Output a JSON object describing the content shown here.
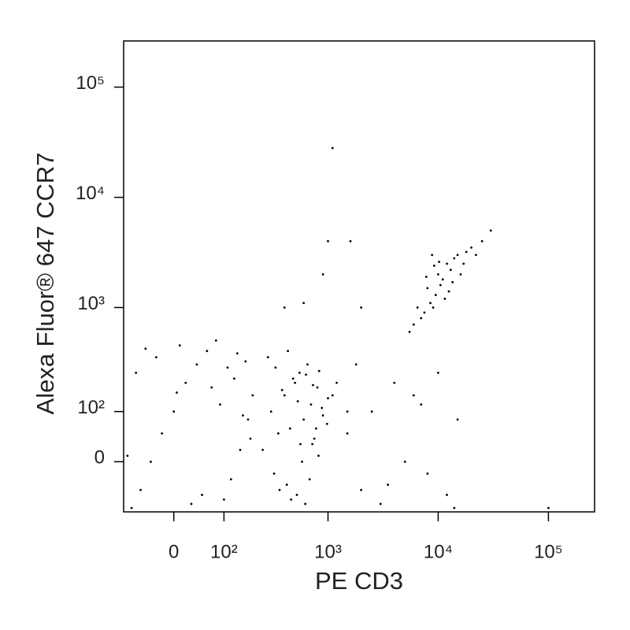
{
  "chart_data": {
    "type": "scatter",
    "xlabel": "PE CD3",
    "ylabel": "Alexa Fluor® 647 CCR7",
    "scale": "biexponential",
    "color": "#000000",
    "xlim": [
      -100,
      262144
    ],
    "ylim": [
      -100,
      262144
    ],
    "xticks": [
      0,
      {
        "value": 100,
        "label": "10²"
      },
      {
        "value": 1000,
        "label": "10³"
      },
      {
        "value": 10000,
        "label": "10⁴"
      },
      {
        "value": 100000,
        "label": "10⁵"
      }
    ],
    "yticks": [
      0,
      {
        "value": 100,
        "label": "10²"
      },
      {
        "value": 1000,
        "label": "10³"
      },
      {
        "value": 10000,
        "label": "10⁴"
      },
      {
        "value": 100000,
        "label": "10⁵"
      }
    ],
    "x": [
      8000,
      10000,
      12000,
      9000,
      15000,
      7000,
      11000,
      13000,
      20000,
      6000,
      9500,
      14000,
      8500,
      16000,
      25000,
      10500,
      7500,
      12500,
      18000,
      5500,
      30000,
      9200,
      11500,
      6500,
      13500,
      8800,
      10200,
      17000,
      22000,
      7800,
      300,
      400,
      500,
      600,
      700,
      800,
      350,
      450,
      550,
      650,
      750,
      900,
      1000,
      1200,
      1500,
      250,
      320,
      420,
      520,
      620,
      720,
      820,
      380,
      480,
      580,
      680,
      780,
      880,
      980,
      1100,
      280,
      330,
      430,
      530,
      630,
      730,
      830,
      360,
      460,
      560,
      -80,
      -60,
      -40,
      -20,
      0,
      20,
      40,
      60,
      80,
      100,
      120,
      150,
      180,
      200,
      -70,
      -30,
      10,
      50,
      90,
      130,
      170,
      -50,
      30,
      70,
      110,
      140,
      190,
      -90,
      5,
      160,
      1500,
      2000,
      2500,
      3000,
      4000,
      5000,
      6000,
      8000,
      12000,
      15000,
      1800,
      3500,
      7000,
      10000,
      14000,
      1100,
      1000,
      1600,
      900,
      2000,
      400,
      600,
      100000
    ],
    "values": [
      1500,
      2000,
      2500,
      1000,
      3000,
      800,
      1800,
      2200,
      3500,
      700,
      1300,
      2800,
      1100,
      2000,
      4000,
      1600,
      900,
      1400,
      3200,
      600,
      5000,
      2400,
      1200,
      1000,
      1700,
      3000,
      2600,
      2500,
      3000,
      1900,
      100,
      150,
      200,
      80,
      120,
      180,
      50,
      60,
      250,
      300,
      40,
      90,
      140,
      200,
      100,
      20,
      -20,
      -40,
      -60,
      -80,
      30,
      10,
      170,
      220,
      0,
      -30,
      60,
      110,
      70,
      150,
      350,
      280,
      400,
      130,
      240,
      190,
      260,
      -50,
      -70,
      30,
      -90,
      -50,
      0,
      50,
      100,
      200,
      300,
      400,
      500,
      -70,
      -30,
      20,
      80,
      150,
      250,
      350,
      450,
      -60,
      120,
      220,
      320,
      420,
      -80,
      180,
      280,
      380,
      40,
      10,
      160,
      90,
      50,
      -50,
      100,
      -80,
      200,
      0,
      150,
      -20,
      -60,
      80,
      300,
      -40,
      120,
      250,
      -90,
      28000,
      4000,
      4000,
      2000,
      1000,
      1000,
      1100,
      -90
    ]
  }
}
